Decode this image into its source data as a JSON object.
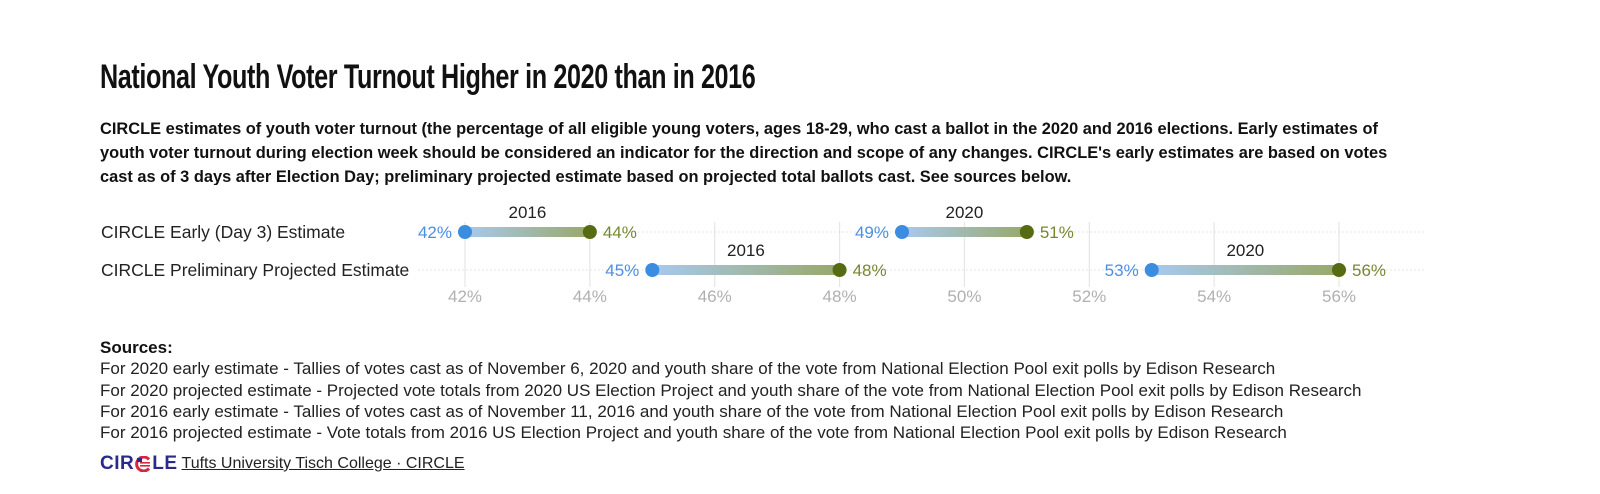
{
  "header": {
    "title": "National Youth Voter Turnout Higher in 2020 than in 2016",
    "subtitle": "estimates of youth voter turnout (the percentage of all eligible young voters, ages 18-29, who cast a ballot in the 2020 and 2016 elections. Early estimates of youth voter turnout during election week should be considered an indicator for the direction and scope of any changes. CIRCLE's early estimates are based on votes cast as of 3 days after Election Day; preliminary projected estimate based on projected total ballots cast. See sources below.",
    "subtitle_lead": "CIRCLE"
  },
  "colors": {
    "low_dot": "#3b8de0",
    "high_dot": "#566b12",
    "low_label": "#4a90e2",
    "high_label": "#76882f",
    "axis_label": "#b0b0b0",
    "gridline": "#e6e6e6"
  },
  "chart_data": {
    "type": "dumbbell",
    "title": "National Youth Voter Turnout Higher in 2020 than in 2016",
    "xlabel": "",
    "ylabel": "",
    "xlim": [
      41.2,
      57.0
    ],
    "x_ticks": [
      42,
      44,
      46,
      48,
      50,
      52,
      54,
      56
    ],
    "x_tick_labels": [
      "42%",
      "44%",
      "46%",
      "48%",
      "50%",
      "52%",
      "54%",
      "56%"
    ],
    "categories": [
      "CIRCLE Early (Day 3) Estimate",
      "CIRCLE Preliminary Projected Estimate"
    ],
    "grid": true,
    "series": [
      {
        "category": "CIRCLE Early (Day 3) Estimate",
        "ranges": [
          {
            "name": "2016",
            "low": 42,
            "high": 44,
            "low_label": "42%",
            "high_label": "44%"
          },
          {
            "name": "2020",
            "low": 49,
            "high": 51,
            "low_label": "49%",
            "high_label": "51%"
          }
        ]
      },
      {
        "category": "CIRCLE Preliminary Projected Estimate",
        "ranges": [
          {
            "name": "2016",
            "low": 45,
            "high": 48,
            "low_label": "45%",
            "high_label": "48%"
          },
          {
            "name": "2020",
            "low": 53,
            "high": 56,
            "low_label": "53%",
            "high_label": "56%"
          }
        ]
      }
    ]
  },
  "sources": {
    "heading": "Sources:",
    "lines": [
      "For 2020 early estimate - Tallies of votes cast as of November 6, 2020 and youth share of the vote from National Election Pool exit polls by Edison Research",
      "For 2020 projected estimate - Projected vote totals from 2020 US Election Project and youth share of the vote from National Election Pool exit polls by Edison Research",
      "For 2016 early estimate - Tallies of votes cast as of November 11, 2016 and youth share of the vote from National Election Pool exit polls by Edison Research",
      "For 2016 projected estimate - Vote totals from 2016 US Election Project and youth share of the vote from National Election Pool exit polls by Edison Research"
    ]
  },
  "footer": {
    "logo_left": "CIR",
    "logo_right": "LE",
    "link": "Tufts University Tisch College · CIRCLE"
  }
}
